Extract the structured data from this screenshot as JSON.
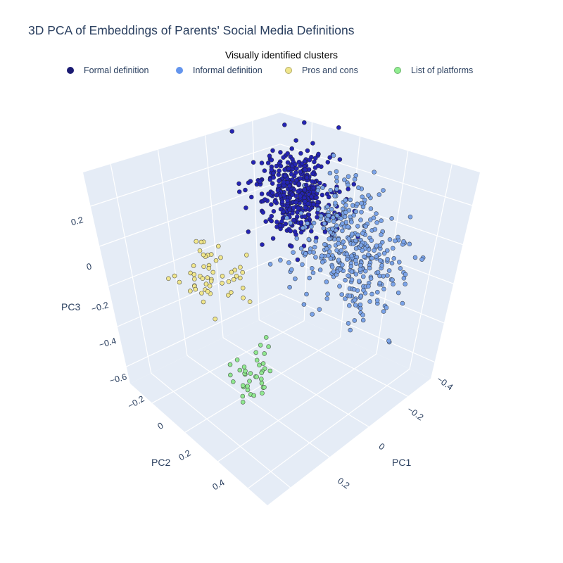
{
  "chart_data": {
    "type": "scatter",
    "title": "3D PCA of Embeddings of Parents' Social Media Definitions",
    "legend_title": "Visually identified clusters",
    "legend_placement": "top-center",
    "axes": {
      "x": {
        "label": "PC1",
        "ticks": [
          "−0.4",
          "−0.2",
          "0",
          "0.2"
        ],
        "range": [
          -0.45,
          0.35
        ]
      },
      "y": {
        "label": "PC2",
        "ticks": [
          "−0.2",
          "0",
          "0.2",
          "0.4"
        ],
        "range": [
          -0.3,
          0.55
        ]
      },
      "z": {
        "label": "PC3",
        "ticks": [
          "−0.6",
          "−0.4",
          "−0.2",
          "0",
          "0.2"
        ],
        "range": [
          -0.6,
          0.35
        ]
      }
    },
    "grid": true,
    "series": [
      {
        "name": "Formal definition",
        "color": "#1a1a72",
        "fill": "#2424b4",
        "center": [
          -0.12,
          -0.22,
          0.17
        ],
        "spread": [
          0.08,
          0.06,
          0.09
        ],
        "count": 420
      },
      {
        "name": "Informal definition",
        "color": "#6495ED",
        "fill": "#7aa3e8",
        "center": [
          0.22,
          -0.12,
          0.09
        ],
        "spread": [
          0.1,
          0.08,
          0.13
        ],
        "count": 380
      },
      {
        "name": "Pros and cons",
        "color": "#F0E68C",
        "fill": "#f0e68c",
        "center": [
          -0.28,
          0.06,
          -0.12
        ],
        "spread": [
          0.06,
          0.06,
          0.07
        ],
        "count": 55
      },
      {
        "name": "List of platforms",
        "color": "#90EE90",
        "fill": "#90e890",
        "center": [
          0.04,
          0.18,
          -0.38
        ],
        "spread": [
          0.03,
          0.04,
          0.06
        ],
        "count": 38
      }
    ]
  }
}
